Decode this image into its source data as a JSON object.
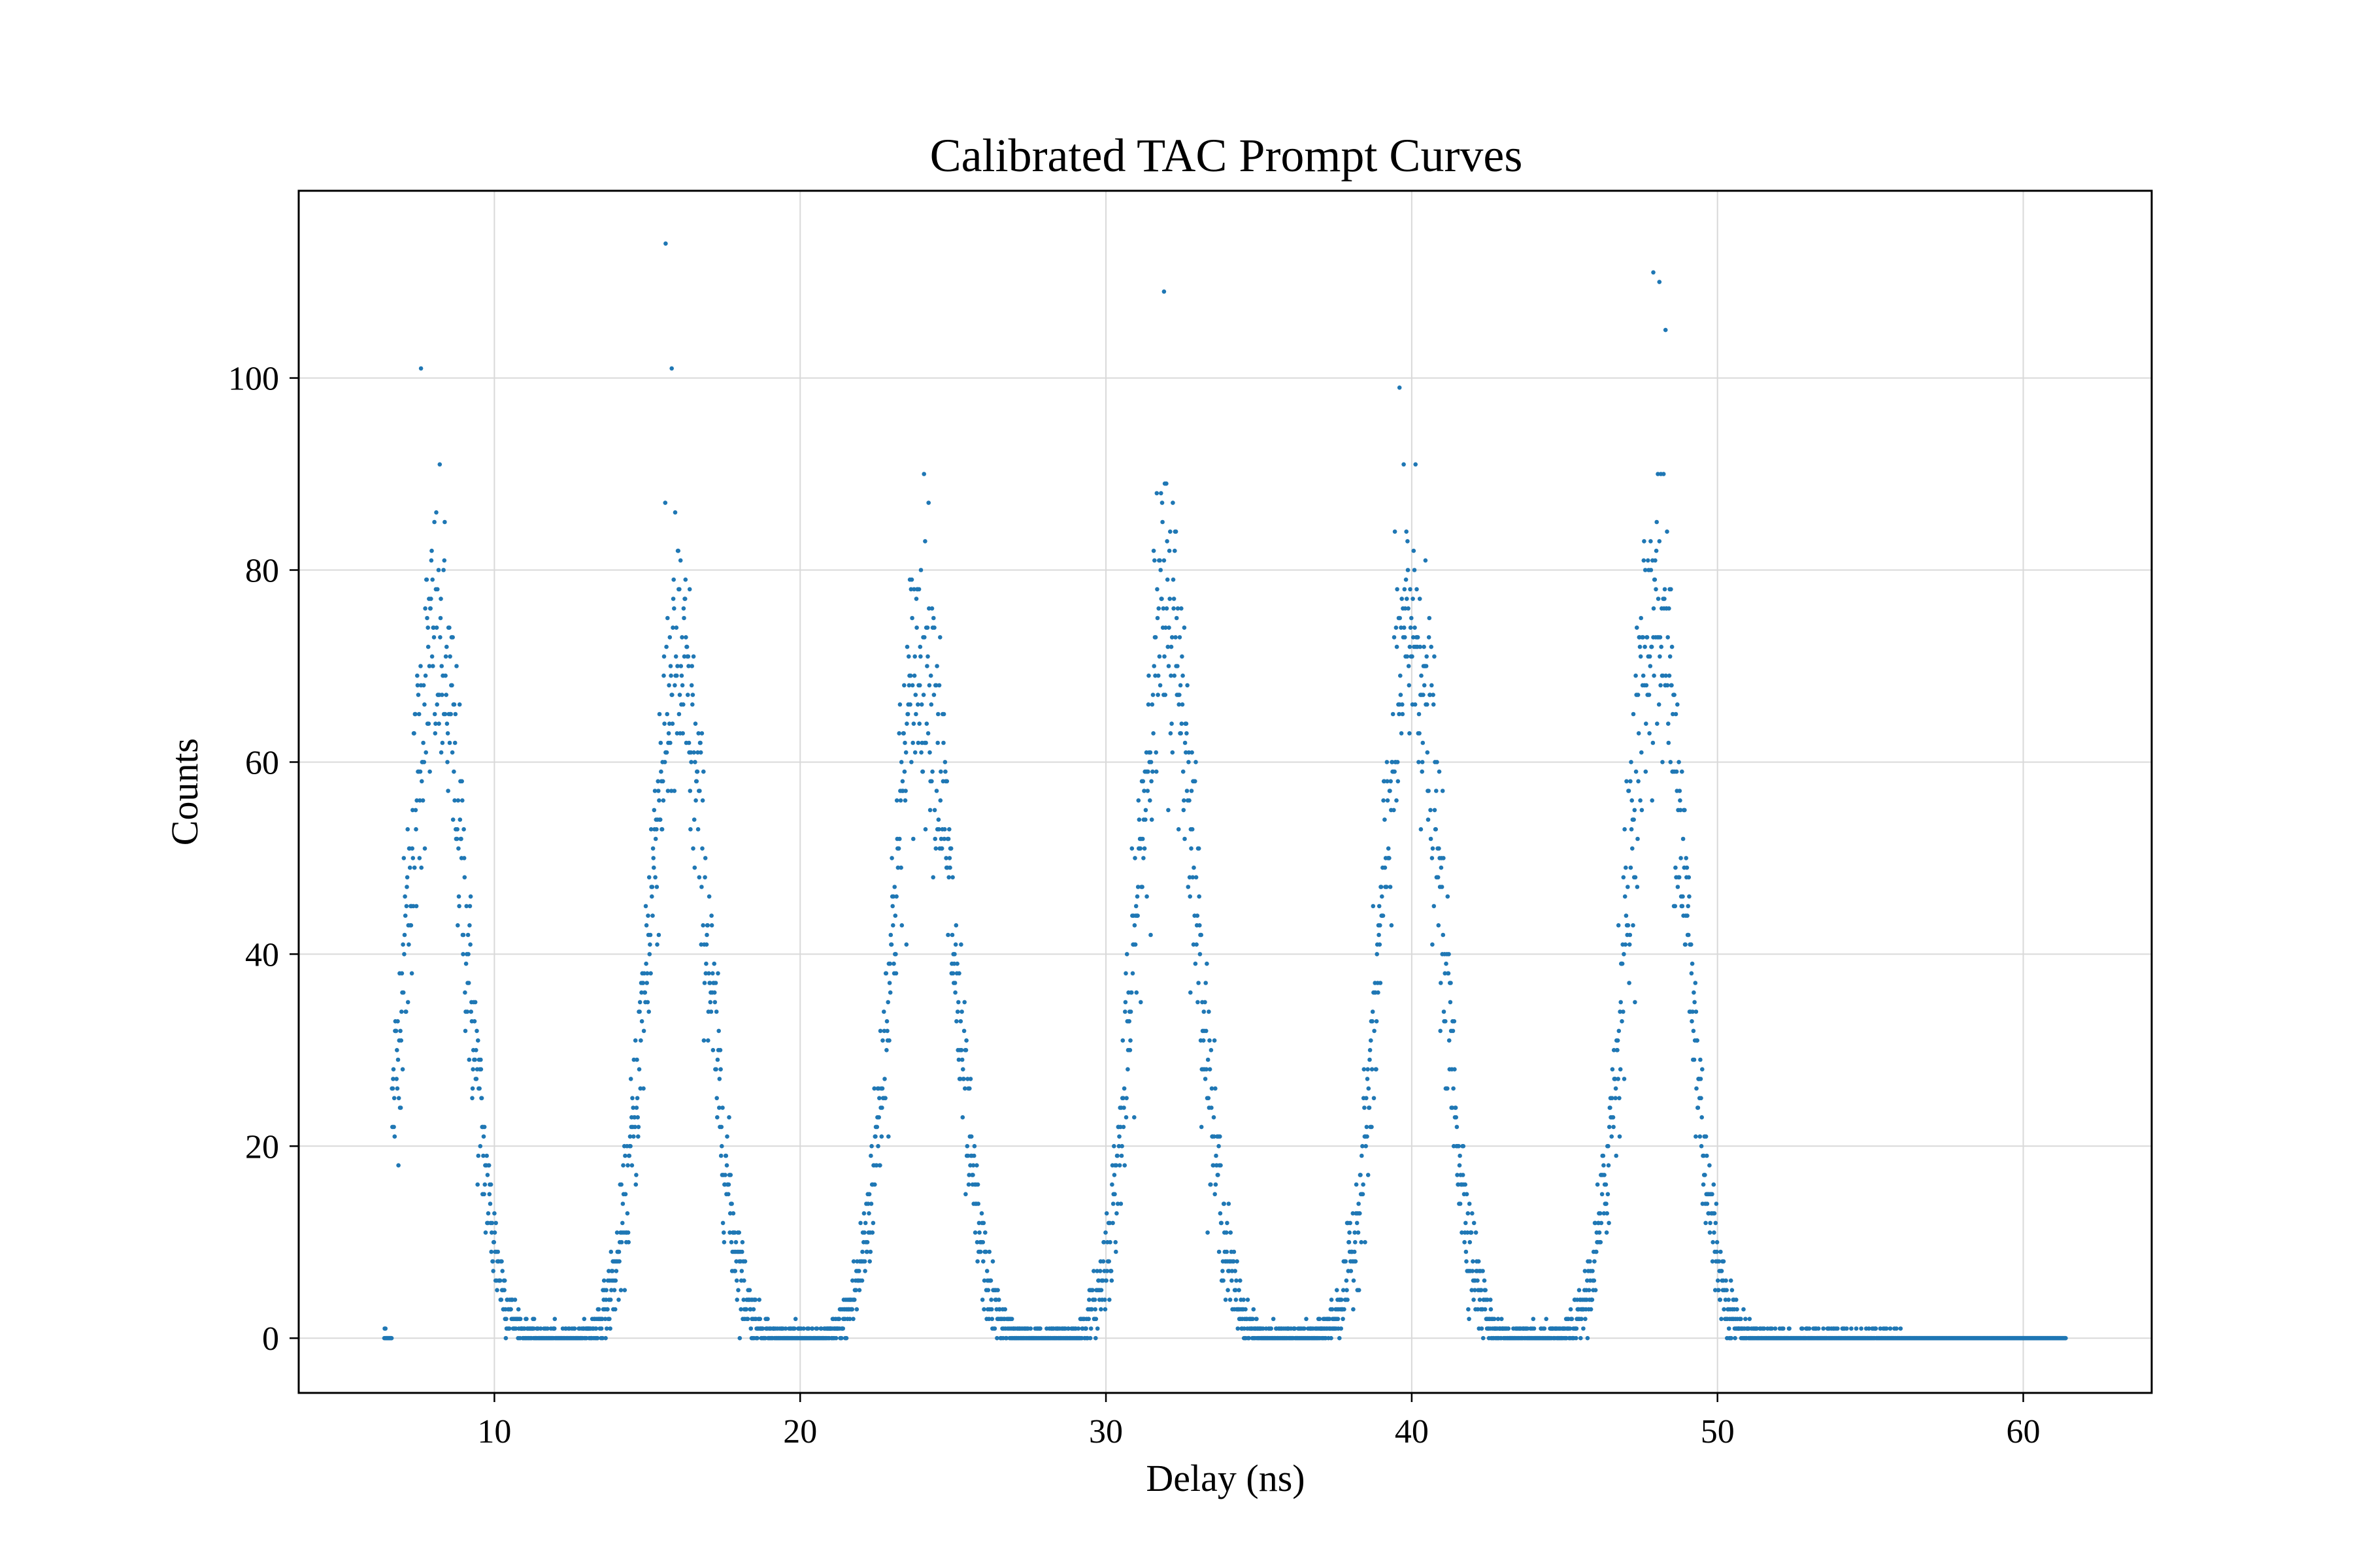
{
  "chart_data": {
    "type": "scatter",
    "title": "Calibrated TAC Prompt Curves",
    "xlabel": "Delay (ns)",
    "ylabel": "Counts",
    "xlim": [
      3.6,
      64.2
    ],
    "ylim": [
      -5.7,
      119.5
    ],
    "xticks": [
      10,
      20,
      30,
      40,
      50,
      60
    ],
    "yticks": [
      0,
      20,
      40,
      60,
      80,
      100
    ],
    "xtick_labels": [
      "10",
      "20",
      "30",
      "40",
      "50",
      "60"
    ],
    "ytick_labels": [
      "0",
      "20",
      "40",
      "60",
      "80",
      "100"
    ],
    "grid": true,
    "legend": "none",
    "marker_color": "#1f77b4",
    "peaks": [
      {
        "center_ns": 8.1,
        "height": 72,
        "sigma_ns": 0.95
      },
      {
        "center_ns": 16.0,
        "height": 70,
        "sigma_ns": 0.95
      },
      {
        "center_ns": 24.0,
        "height": 72,
        "sigma_ns": 0.95
      },
      {
        "center_ns": 32.0,
        "height": 76,
        "sigma_ns": 0.95
      },
      {
        "center_ns": 40.0,
        "height": 74,
        "sigma_ns": 0.95
      },
      {
        "center_ns": 48.0,
        "height": 76,
        "sigma_ns": 0.95
      }
    ],
    "data_range_ns": [
      6.4,
      61.4
    ],
    "highest_points": [
      {
        "x": 7.6,
        "y": 101
      },
      {
        "x": 15.6,
        "y": 114
      },
      {
        "x": 15.8,
        "y": 101
      },
      {
        "x": 31.9,
        "y": 109
      },
      {
        "x": 39.6,
        "y": 99
      },
      {
        "x": 47.9,
        "y": 111
      },
      {
        "x": 48.1,
        "y": 110
      },
      {
        "x": 48.3,
        "y": 105
      }
    ]
  }
}
